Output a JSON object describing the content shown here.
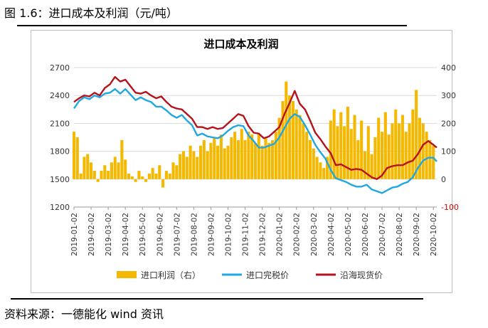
{
  "figure_title": "图 1.6：进口成本及利润（元/吨）",
  "source": "资料来源：一德能化  wind 资讯",
  "colors": {
    "profit": "#F5B800",
    "cost": "#1EA7E1",
    "spot": "#B5121B",
    "neg_tick": "#E00000"
  },
  "chart_data": {
    "type": "bar+line",
    "title": "进口成本及利润",
    "left_axis": {
      "ylim": [
        1200,
        2700
      ],
      "ticks": [
        1200,
        1500,
        1800,
        2100,
        2400,
        2700
      ]
    },
    "right_axis": {
      "ylim": [
        -100,
        400
      ],
      "ticks": [
        -100,
        0,
        100,
        200,
        300,
        400
      ]
    },
    "x_ticks": [
      "2019-01-02",
      "2019-02-02",
      "2019-03-02",
      "2019-04-02",
      "2019-05-02",
      "2019-06-02",
      "2019-07-02",
      "2019-08-02",
      "2019-09-02",
      "2019-10-02",
      "2019-11-02",
      "2019-12-02",
      "2020-01-02",
      "2020-02-02",
      "2020-03-02",
      "2020-04-02",
      "2020-05-02",
      "2020-06-02",
      "2020-07-02",
      "2020-08-02",
      "2020-09-02",
      "2020-10-02"
    ],
    "x_range": [
      0,
      21.2
    ],
    "legend_position": "bottom",
    "series": [
      {
        "name": "进口利润（右）",
        "type": "bar",
        "axis": "right",
        "points": [
          [
            0.0,
            170
          ],
          [
            0.2,
            150
          ],
          [
            0.4,
            20
          ],
          [
            0.6,
            80
          ],
          [
            0.8,
            90
          ],
          [
            1.0,
            60
          ],
          [
            1.2,
            30
          ],
          [
            1.4,
            -10
          ],
          [
            1.6,
            30
          ],
          [
            1.8,
            50
          ],
          [
            2.0,
            30
          ],
          [
            2.2,
            60
          ],
          [
            2.4,
            80
          ],
          [
            2.6,
            60
          ],
          [
            2.8,
            140
          ],
          [
            3.0,
            70
          ],
          [
            3.2,
            20
          ],
          [
            3.4,
            10
          ],
          [
            3.6,
            -10
          ],
          [
            3.8,
            30
          ],
          [
            4.0,
            10
          ],
          [
            4.2,
            -10
          ],
          [
            4.4,
            20
          ],
          [
            4.6,
            40
          ],
          [
            4.8,
            20
          ],
          [
            5.0,
            50
          ],
          [
            5.2,
            -30
          ],
          [
            5.4,
            30
          ],
          [
            5.6,
            20
          ],
          [
            5.8,
            60
          ],
          [
            6.0,
            50
          ],
          [
            6.2,
            90
          ],
          [
            6.4,
            100
          ],
          [
            6.6,
            80
          ],
          [
            6.8,
            120
          ],
          [
            7.0,
            100
          ],
          [
            7.2,
            80
          ],
          [
            7.4,
            120
          ],
          [
            7.6,
            140
          ],
          [
            7.8,
            100
          ],
          [
            8.0,
            130
          ],
          [
            8.2,
            150
          ],
          [
            8.4,
            120
          ],
          [
            8.6,
            160
          ],
          [
            8.8,
            110
          ],
          [
            9.0,
            120
          ],
          [
            9.2,
            150
          ],
          [
            9.4,
            170
          ],
          [
            9.6,
            140
          ],
          [
            9.8,
            180
          ],
          [
            10.0,
            140
          ],
          [
            10.2,
            170
          ],
          [
            10.4,
            160
          ],
          [
            10.6,
            130
          ],
          [
            10.8,
            160
          ],
          [
            11.0,
            120
          ],
          [
            11.2,
            150
          ],
          [
            11.4,
            130
          ],
          [
            11.6,
            140
          ],
          [
            11.8,
            170
          ],
          [
            12.0,
            220
          ],
          [
            12.2,
            280
          ],
          [
            12.4,
            350
          ],
          [
            12.6,
            300
          ],
          [
            12.8,
            280
          ],
          [
            13.0,
            250
          ],
          [
            13.2,
            230
          ],
          [
            13.4,
            200
          ],
          [
            13.6,
            170
          ],
          [
            13.8,
            140
          ],
          [
            14.0,
            110
          ],
          [
            14.2,
            80
          ],
          [
            14.4,
            60
          ],
          [
            14.6,
            40
          ],
          [
            14.8,
            80
          ],
          [
            15.0,
            210
          ],
          [
            15.2,
            250
          ],
          [
            15.4,
            190
          ],
          [
            15.6,
            240
          ],
          [
            15.8,
            190
          ],
          [
            16.0,
            260
          ],
          [
            16.2,
            180
          ],
          [
            16.4,
            230
          ],
          [
            16.6,
            140
          ],
          [
            16.8,
            210
          ],
          [
            17.0,
            100
          ],
          [
            17.2,
            190
          ],
          [
            17.4,
            90
          ],
          [
            17.6,
            150
          ],
          [
            17.8,
            220
          ],
          [
            18.0,
            170
          ],
          [
            18.2,
            240
          ],
          [
            18.4,
            160
          ],
          [
            18.6,
            200
          ],
          [
            18.8,
            250
          ],
          [
            19.0,
            200
          ],
          [
            19.2,
            230
          ],
          [
            19.4,
            170
          ],
          [
            19.6,
            200
          ],
          [
            19.8,
            250
          ],
          [
            20.0,
            320
          ],
          [
            20.2,
            220
          ],
          [
            20.4,
            200
          ],
          [
            20.6,
            170
          ],
          [
            20.8,
            140
          ],
          [
            21.0,
            120
          ]
        ]
      },
      {
        "name": "进口完税价",
        "type": "line",
        "axis": "left",
        "points": [
          [
            0.0,
            2260
          ],
          [
            0.3,
            2340
          ],
          [
            0.6,
            2380
          ],
          [
            0.9,
            2360
          ],
          [
            1.2,
            2400
          ],
          [
            1.5,
            2380
          ],
          [
            1.8,
            2420
          ],
          [
            2.1,
            2430
          ],
          [
            2.4,
            2470
          ],
          [
            2.7,
            2420
          ],
          [
            3.0,
            2470
          ],
          [
            3.3,
            2410
          ],
          [
            3.6,
            2350
          ],
          [
            3.9,
            2380
          ],
          [
            4.2,
            2350
          ],
          [
            4.5,
            2330
          ],
          [
            4.8,
            2280
          ],
          [
            5.1,
            2280
          ],
          [
            5.4,
            2240
          ],
          [
            5.7,
            2190
          ],
          [
            6.0,
            2160
          ],
          [
            6.3,
            2190
          ],
          [
            6.6,
            2130
          ],
          [
            6.9,
            2080
          ],
          [
            7.2,
            1970
          ],
          [
            7.5,
            1990
          ],
          [
            7.8,
            1960
          ],
          [
            8.1,
            1950
          ],
          [
            8.4,
            1940
          ],
          [
            8.7,
            1970
          ],
          [
            9.0,
            2020
          ],
          [
            9.3,
            2060
          ],
          [
            9.6,
            2080
          ],
          [
            9.9,
            2070
          ],
          [
            10.2,
            1970
          ],
          [
            10.5,
            1910
          ],
          [
            10.8,
            1840
          ],
          [
            11.1,
            1840
          ],
          [
            11.4,
            1860
          ],
          [
            11.7,
            1880
          ],
          [
            12.0,
            1950
          ],
          [
            12.3,
            2050
          ],
          [
            12.6,
            2150
          ],
          [
            12.9,
            2200
          ],
          [
            13.2,
            2170
          ],
          [
            13.5,
            2080
          ],
          [
            13.8,
            1980
          ],
          [
            14.1,
            1870
          ],
          [
            14.4,
            1790
          ],
          [
            14.7,
            1720
          ],
          [
            15.0,
            1600
          ],
          [
            15.3,
            1510
          ],
          [
            15.6,
            1490
          ],
          [
            15.9,
            1470
          ],
          [
            16.2,
            1440
          ],
          [
            16.5,
            1420
          ],
          [
            16.8,
            1420
          ],
          [
            17.1,
            1440
          ],
          [
            17.4,
            1390
          ],
          [
            17.7,
            1370
          ],
          [
            18.0,
            1350
          ],
          [
            18.3,
            1380
          ],
          [
            18.6,
            1410
          ],
          [
            18.9,
            1420
          ],
          [
            19.2,
            1450
          ],
          [
            19.5,
            1470
          ],
          [
            19.8,
            1520
          ],
          [
            20.1,
            1620
          ],
          [
            20.4,
            1700
          ],
          [
            20.7,
            1730
          ],
          [
            21.0,
            1730
          ],
          [
            21.2,
            1690
          ]
        ]
      },
      {
        "name": "沿海现货价",
        "type": "line",
        "axis": "left",
        "points": [
          [
            0.0,
            2330
          ],
          [
            0.3,
            2370
          ],
          [
            0.6,
            2400
          ],
          [
            0.9,
            2390
          ],
          [
            1.2,
            2430
          ],
          [
            1.5,
            2400
          ],
          [
            1.8,
            2480
          ],
          [
            2.1,
            2520
          ],
          [
            2.4,
            2600
          ],
          [
            2.7,
            2550
          ],
          [
            3.0,
            2570
          ],
          [
            3.3,
            2500
          ],
          [
            3.6,
            2430
          ],
          [
            3.9,
            2420
          ],
          [
            4.2,
            2440
          ],
          [
            4.5,
            2400
          ],
          [
            4.8,
            2370
          ],
          [
            5.1,
            2390
          ],
          [
            5.4,
            2330
          ],
          [
            5.7,
            2280
          ],
          [
            6.0,
            2260
          ],
          [
            6.3,
            2250
          ],
          [
            6.6,
            2200
          ],
          [
            6.9,
            2150
          ],
          [
            7.2,
            2060
          ],
          [
            7.5,
            2060
          ],
          [
            7.8,
            2040
          ],
          [
            8.1,
            2060
          ],
          [
            8.4,
            2040
          ],
          [
            8.7,
            2050
          ],
          [
            9.0,
            2100
          ],
          [
            9.3,
            2150
          ],
          [
            9.6,
            2200
          ],
          [
            9.9,
            2180
          ],
          [
            10.2,
            2070
          ],
          [
            10.5,
            2000
          ],
          [
            10.8,
            1990
          ],
          [
            11.1,
            1940
          ],
          [
            11.4,
            1960
          ],
          [
            11.7,
            2010
          ],
          [
            12.0,
            2060
          ],
          [
            12.3,
            2200
          ],
          [
            12.6,
            2320
          ],
          [
            12.9,
            2450
          ],
          [
            13.2,
            2310
          ],
          [
            13.5,
            2250
          ],
          [
            13.8,
            2130
          ],
          [
            14.1,
            2000
          ],
          [
            14.4,
            1930
          ],
          [
            14.7,
            1850
          ],
          [
            15.0,
            1780
          ],
          [
            15.3,
            1650
          ],
          [
            15.6,
            1660
          ],
          [
            15.9,
            1630
          ],
          [
            16.2,
            1600
          ],
          [
            16.5,
            1610
          ],
          [
            16.8,
            1600
          ],
          [
            17.1,
            1560
          ],
          [
            17.4,
            1520
          ],
          [
            17.7,
            1500
          ],
          [
            18.0,
            1540
          ],
          [
            18.3,
            1620
          ],
          [
            18.6,
            1640
          ],
          [
            18.9,
            1650
          ],
          [
            19.2,
            1650
          ],
          [
            19.5,
            1680
          ],
          [
            19.8,
            1700
          ],
          [
            20.1,
            1770
          ],
          [
            20.4,
            1870
          ],
          [
            20.7,
            1910
          ],
          [
            21.0,
            1870
          ],
          [
            21.2,
            1840
          ]
        ]
      }
    ]
  }
}
